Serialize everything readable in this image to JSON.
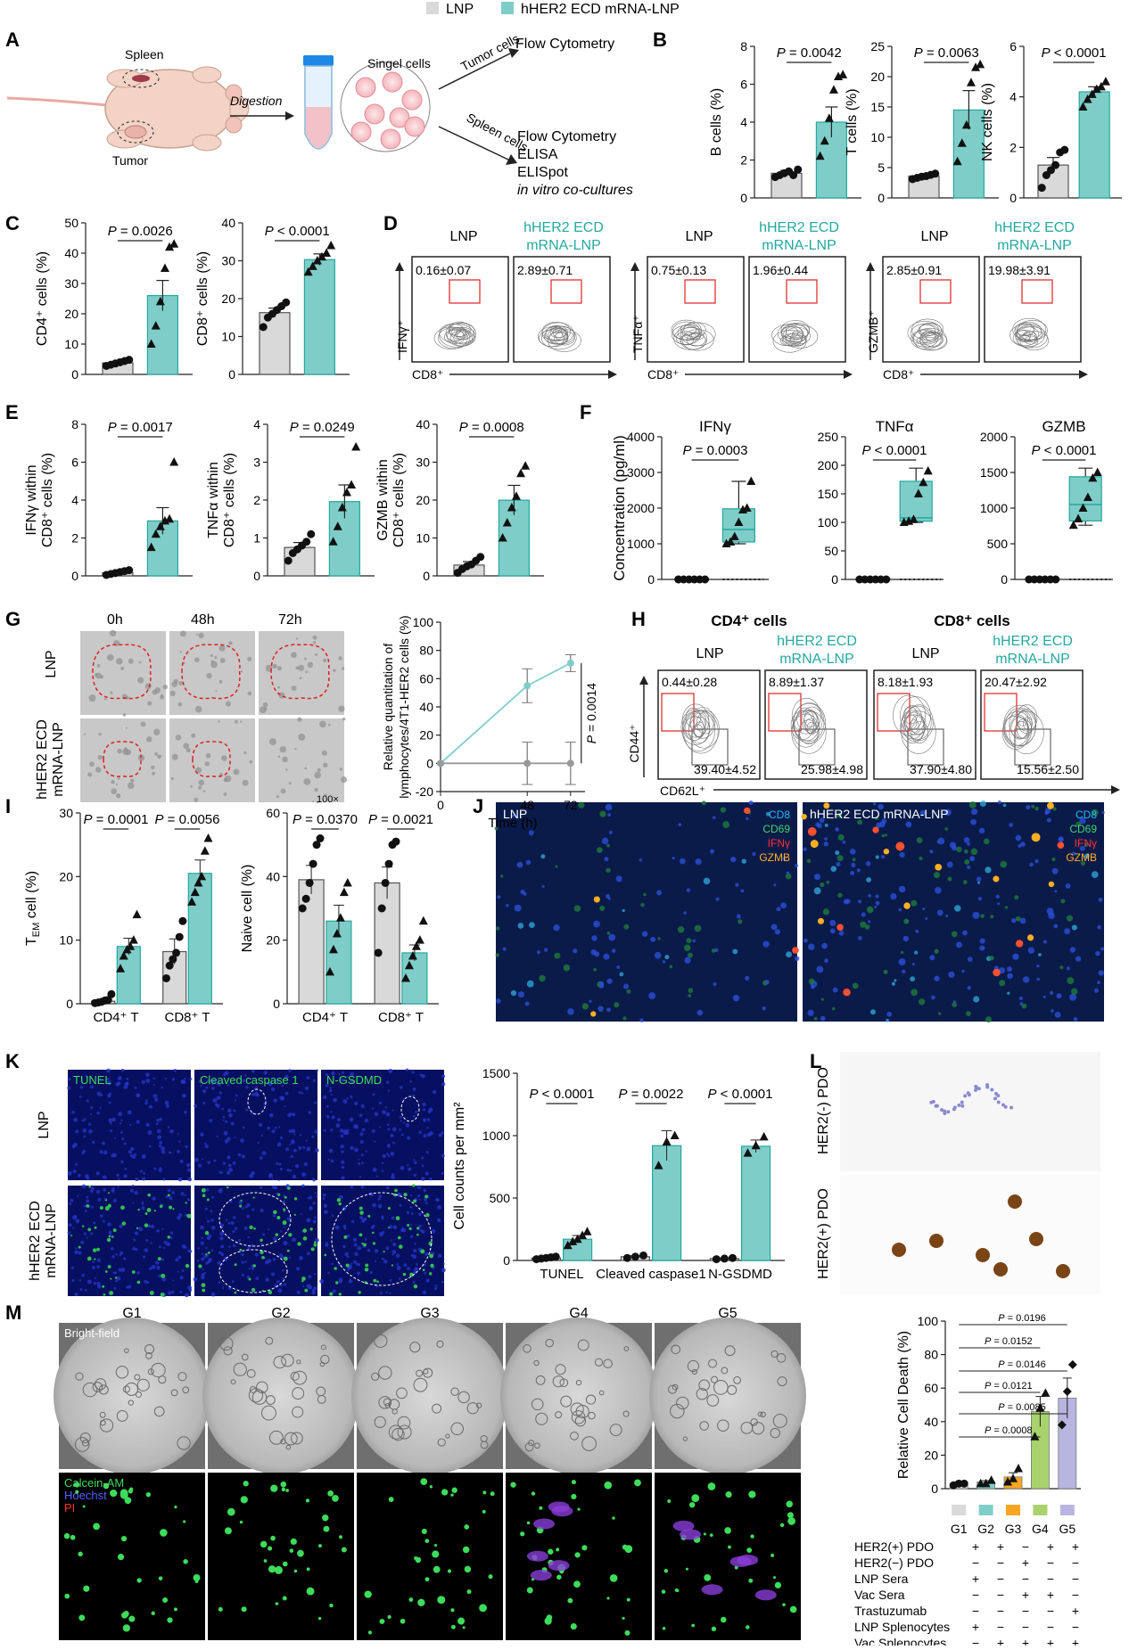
{
  "legend": [
    {
      "label": "LNP",
      "color": "#d9d9d9"
    },
    {
      "label": "hHER2 ECD mRNA-LNP",
      "color": "#7fcdc8"
    }
  ],
  "colors": {
    "lnp": "#d9d9d9",
    "vac": "#7fcdc8",
    "vac_dark": "#24a89e",
    "g3": "#f5a623",
    "g4": "#a8d26b",
    "g5": "#b8b4e0",
    "gate": "#e02020"
  },
  "panel_a": {
    "letter": "A",
    "spleen": "Spleen",
    "tumor": "Tumor",
    "digestion": "Digestion",
    "single_cells": "Singel cells",
    "tumor_cells": "Tumor cells",
    "spleen_cells": "Spleen cells",
    "tumor_assay": "Flow Cytometry",
    "spleen_assays": [
      "Flow Cytometry",
      "ELISA",
      "ELISpot",
      "in vitro co-cultures"
    ]
  },
  "panel_letters": {
    "B": "B",
    "C": "C",
    "D": "D",
    "E": "E",
    "F": "F",
    "G": "G",
    "H": "H",
    "I": "I",
    "J": "J",
    "K": "K",
    "L": "L",
    "M": "M"
  },
  "chart_data": [
    {
      "id": "B1",
      "type": "bar",
      "ylabel": "B cells (%)",
      "ylim": [
        0,
        8
      ],
      "yticks": [
        0,
        2,
        4,
        6,
        8
      ],
      "categories": [
        "LNP",
        "hHER2 ECD mRNA-LNP"
      ],
      "values": [
        1.3,
        4.0
      ],
      "sem": [
        0.15,
        0.8
      ],
      "points": [
        [
          1.1,
          1.2,
          1.3,
          1.4,
          1.2,
          1.5
        ],
        [
          2.2,
          3.0,
          4.2,
          5.7,
          6.4,
          6.5
        ]
      ],
      "pvalue": "P = 0.0042"
    },
    {
      "id": "B2",
      "type": "bar",
      "ylabel": "T cells (%)",
      "ylim": [
        0,
        25
      ],
      "yticks": [
        0,
        5,
        10,
        15,
        20,
        25
      ],
      "categories": [
        "LNP",
        "hHER2 ECD mRNA-LNP"
      ],
      "values": [
        3.6,
        14.5
      ],
      "sem": [
        0.2,
        3.2
      ],
      "points": [
        [
          3.1,
          3.3,
          3.5,
          3.6,
          3.8,
          4.0
        ],
        [
          6.0,
          9.0,
          12.0,
          19.0,
          21.5,
          22.0
        ]
      ],
      "pvalue": "P = 0.0063"
    },
    {
      "id": "B3",
      "type": "bar",
      "ylabel": "NK cells (%)",
      "ylim": [
        0,
        6
      ],
      "yticks": [
        0,
        2,
        4,
        6
      ],
      "categories": [
        "LNP",
        "hHER2 ECD mRNA-LNP"
      ],
      "values": [
        1.3,
        4.2
      ],
      "sem": [
        0.3,
        0.2
      ],
      "points": [
        [
          0.4,
          0.9,
          1.1,
          1.3,
          1.8,
          1.9
        ],
        [
          3.6,
          3.9,
          4.1,
          4.3,
          4.4,
          4.6
        ]
      ],
      "pvalue": "P < 0.0001"
    },
    {
      "id": "C1",
      "type": "bar",
      "ylabel": "CD4⁺ cells (%)",
      "ylim": [
        0,
        50
      ],
      "yticks": [
        0,
        10,
        20,
        30,
        40,
        50
      ],
      "categories": [
        "LNP",
        "hHER2 ECD mRNA-LNP"
      ],
      "values": [
        3.8,
        26.0
      ],
      "sem": [
        0.4,
        5.0
      ],
      "points": [
        [
          2.8,
          3.2,
          3.6,
          4.0,
          4.4,
          4.8
        ],
        [
          10.0,
          16.0,
          24.0,
          35.0,
          42.0,
          43.0
        ]
      ],
      "pvalue": "P = 0.0026"
    },
    {
      "id": "C2",
      "type": "bar",
      "ylabel": "CD8⁺ cells (%)",
      "ylim": [
        0,
        40
      ],
      "yticks": [
        0,
        10,
        20,
        30,
        40
      ],
      "categories": [
        "LNP",
        "hHER2 ECD mRNA-LNP"
      ],
      "values": [
        16.3,
        30.3
      ],
      "sem": [
        1.2,
        1.5
      ],
      "points": [
        [
          12.5,
          15.0,
          16.0,
          17.0,
          18.0,
          19.0
        ],
        [
          27.0,
          28.5,
          30.0,
          31.0,
          32.0,
          34.0
        ]
      ],
      "pvalue": "P < 0.0001"
    },
    {
      "id": "E1",
      "type": "bar",
      "ylabel": "IFNγ within CD8⁺ cells (%)",
      "ylim": [
        0,
        8
      ],
      "yticks": [
        0,
        2,
        4,
        6,
        8
      ],
      "categories": [
        "LNP",
        "hHER2 ECD mRNA-LNP"
      ],
      "values": [
        0.16,
        2.9
      ],
      "sem": [
        0.07,
        0.7
      ],
      "points": [
        [
          0.05,
          0.1,
          0.15,
          0.2,
          0.25,
          0.3
        ],
        [
          1.5,
          2.2,
          2.6,
          2.9,
          3.0,
          6.0
        ]
      ],
      "pvalue": "P = 0.0017"
    },
    {
      "id": "E2",
      "type": "bar",
      "ylabel": "TNFα within CD8⁺ cells (%)",
      "ylim": [
        0,
        4
      ],
      "yticks": [
        0,
        1,
        2,
        3,
        4
      ],
      "categories": [
        "LNP",
        "hHER2 ECD mRNA-LNP"
      ],
      "values": [
        0.75,
        1.96
      ],
      "sem": [
        0.13,
        0.44
      ],
      "points": [
        [
          0.4,
          0.6,
          0.7,
          0.8,
          0.9,
          1.1
        ],
        [
          0.9,
          1.3,
          1.8,
          2.2,
          2.4,
          3.4
        ]
      ],
      "pvalue": "P = 0.0249"
    },
    {
      "id": "E3",
      "type": "bar",
      "ylabel": "GZMB within CD8⁺ cells (%)",
      "ylim": [
        0,
        40
      ],
      "yticks": [
        0,
        10,
        20,
        30,
        40
      ],
      "categories": [
        "LNP",
        "hHER2 ECD mRNA-LNP"
      ],
      "values": [
        2.85,
        19.98
      ],
      "sem": [
        0.91,
        3.91
      ],
      "points": [
        [
          0.8,
          1.8,
          2.5,
          3.0,
          4.0,
          5.0
        ],
        [
          10.0,
          14.0,
          18.0,
          21.0,
          27.0,
          29.0
        ]
      ],
      "pvalue": "P = 0.0008"
    },
    {
      "id": "F1",
      "type": "box",
      "title": "IFNγ",
      "ylabel": "Concentration (pg/ml)",
      "ylim": [
        0,
        4000
      ],
      "yticks": [
        0,
        1000,
        2000,
        3000,
        4000
      ],
      "box": {
        "min": 1000,
        "q1": 1050,
        "median": 1400,
        "q3": 1980,
        "max": 2750
      },
      "lnp_points": [
        0,
        0,
        0,
        0,
        0,
        0
      ],
      "points": [
        1000,
        1050,
        1200,
        1600,
        1950,
        2000,
        2750
      ],
      "pvalue": "P = 0.0003"
    },
    {
      "id": "F2",
      "type": "box",
      "title": "TNFα",
      "ylabel": "",
      "ylim": [
        0,
        250
      ],
      "yticks": [
        0,
        50,
        100,
        150,
        200,
        250
      ],
      "box": {
        "min": 100,
        "q1": 102,
        "median": 108,
        "q3": 172,
        "max": 195
      },
      "lnp_points": [
        0,
        0,
        0,
        0,
        0,
        0
      ],
      "points": [
        100,
        102,
        105,
        150,
        170,
        190
      ],
      "pvalue": "P < 0.0001"
    },
    {
      "id": "F3",
      "type": "box",
      "title": "GZMB",
      "ylabel": "",
      "ylim": [
        0,
        2000
      ],
      "yticks": [
        0,
        500,
        1000,
        1500,
        2000
      ],
      "box": {
        "min": 760,
        "q1": 820,
        "median": 1050,
        "q3": 1440,
        "max": 1560
      },
      "lnp_points": [
        0,
        0,
        0,
        0,
        0,
        0
      ],
      "points": [
        760,
        850,
        1000,
        1150,
        1420,
        1500
      ],
      "pvalue": "P < 0.0001"
    },
    {
      "id": "G",
      "type": "line",
      "ylabel": "Relative quantitation of lymphocytes/4T1-HER2 cells (%)",
      "xlabel": "Time (h)",
      "x": [
        0,
        48,
        72
      ],
      "xticks": [
        0,
        48,
        72
      ],
      "ylim": [
        -20,
        100
      ],
      "yticks": [
        -20,
        0,
        20,
        40,
        60,
        80,
        100
      ],
      "series": [
        {
          "values": [
            0,
            55,
            71
          ],
          "sem": [
            0,
            12,
            6
          ]
        },
        {
          "values": [
            0,
            0,
            0
          ],
          "sem": [
            0,
            15,
            15
          ]
        }
      ],
      "pvalue": "P = 0.0014"
    },
    {
      "id": "I1",
      "type": "grouped_bar",
      "ylabel": "T_EM cell (%)",
      "ylim": [
        0,
        30
      ],
      "yticks": [
        0,
        10,
        20,
        30
      ],
      "categories": [
        "CD4⁺ T",
        "CD8⁺ T"
      ],
      "series": [
        {
          "values": [
            0.4,
            8.2
          ],
          "sem": [
            0.3,
            2.0
          ]
        },
        {
          "values": [
            9.0,
            20.5
          ],
          "sem": [
            1.3,
            2.1
          ]
        }
      ],
      "points": [
        [
          [
            0.1,
            0.2,
            0.3,
            0.5,
            0.6,
            1.5
          ],
          [
            4.0,
            6.0,
            7.0,
            8.0,
            10.5,
            13.0
          ]
        ],
        [
          [
            5.5,
            7.5,
            8.5,
            9.0,
            10.0,
            14.0
          ],
          [
            16.0,
            17.5,
            19.0,
            20.0,
            24.0,
            26.0
          ]
        ]
      ],
      "pvalues": [
        "P = 0.0001",
        "P = 0.0056"
      ]
    },
    {
      "id": "I2",
      "type": "grouped_bar",
      "ylabel": "Naive cell (%)",
      "ylim": [
        0,
        60
      ],
      "yticks": [
        0,
        20,
        40,
        60
      ],
      "categories": [
        "CD4⁺ T",
        "CD8⁺ T"
      ],
      "series": [
        {
          "values": [
            39.0,
            38.0
          ],
          "sem": [
            4.5,
            5.0
          ]
        },
        {
          "values": [
            26.0,
            16.0
          ],
          "sem": [
            5.0,
            2.5
          ]
        }
      ],
      "points": [
        [
          [
            30.0,
            33.0,
            38.0,
            44.0,
            50.0,
            52.0
          ],
          [
            16.0,
            30.0,
            38.0,
            44.0,
            50.0,
            51.0
          ]
        ],
        [
          [
            10.0,
            17.0,
            22.0,
            27.0,
            35.0,
            38.0
          ],
          [
            8.0,
            12.0,
            15.0,
            18.0,
            20.0,
            26.0
          ]
        ]
      ],
      "pvalues": [
        "P = 0.0370",
        "P = 0.0021"
      ]
    },
    {
      "id": "K",
      "type": "grouped_bar",
      "ylabel": "Cell counts per mm²",
      "ylim": [
        0,
        1500
      ],
      "yticks": [
        0,
        500,
        1000,
        1500
      ],
      "categories": [
        "TUNEL",
        "Cleaved caspase1",
        "N-GSDMD"
      ],
      "series": [
        {
          "values": [
            20,
            30,
            15
          ],
          "sem": [
            5,
            8,
            5
          ]
        },
        {
          "values": [
            170,
            920,
            915
          ],
          "sem": [
            30,
            120,
            50
          ]
        }
      ],
      "points": [
        [
          [
            10,
            15,
            20,
            25,
            30
          ],
          [
            20,
            30,
            40
          ],
          [
            10,
            15,
            20
          ]
        ],
        [
          [
            120,
            150,
            170,
            200,
            230
          ],
          [
            760,
            950,
            1000
          ],
          [
            860,
            920,
            990
          ]
        ]
      ],
      "pvalues": [
        "P < 0.0001",
        "P = 0.0022",
        "P < 0.0001"
      ]
    },
    {
      "id": "M",
      "type": "bar",
      "ylabel": "Relative Cell Death (%)",
      "ylim": [
        0,
        100
      ],
      "yticks": [
        0,
        20,
        40,
        60,
        80,
        100
      ],
      "categories": [
        "G1",
        "G2",
        "G3",
        "G4",
        "G5"
      ],
      "values": [
        3.0,
        4.0,
        7.0,
        46.0,
        54.0
      ],
      "sem": [
        0.5,
        0.8,
        2.5,
        9.0,
        12.0
      ],
      "points": [
        [
          2,
          3,
          3
        ],
        [
          3,
          3,
          5
        ],
        [
          4,
          6,
          12
        ],
        [
          31,
          48,
          57
        ],
        [
          38,
          58,
          74
        ]
      ],
      "pvalues": [
        "P = 0.0196",
        "P = 0.0152",
        "P = 0.0146",
        "P = 0.0121",
        "P = 0.0085",
        "P = 0.0008"
      ]
    }
  ],
  "panel_d": {
    "groups": [
      {
        "marker": "IFNγ⁺",
        "lnp_value": "0.16±0.07",
        "vac_value": "2.89±0.71"
      },
      {
        "marker": "TNFα⁺",
        "lnp_value": "0.75±0.13",
        "vac_value": "1.96±0.44"
      },
      {
        "marker": "GZMB⁺",
        "lnp_value": "2.85±0.91",
        "vac_value": "19.98±3.91"
      }
    ],
    "xaxis": "CD8⁺",
    "lnp": "LNP",
    "vac_l1": "hHER2 ECD",
    "vac_l2": "mRNA-LNP"
  },
  "panel_g_images": {
    "times": [
      "0h",
      "48h",
      "72h"
    ],
    "row1": "LNP",
    "row2_l1": "hHER2 ECD",
    "row2_l2": "mRNA-LNP",
    "mag": "100×"
  },
  "panel_h": {
    "cd4_title": "CD4⁺ cells",
    "cd8_title": "CD8⁺ cells",
    "lnp": "LNP",
    "vac_l1": "hHER2 ECD",
    "vac_l2": "mRNA-LNP",
    "top": [
      "0.44±0.28",
      "8.89±1.37",
      "8.18±1.93",
      "20.47±2.92"
    ],
    "bottom": [
      "39.40±4.52",
      "25.98±4.98",
      "37.90±4.80",
      "15.56±2.50"
    ],
    "yaxis": "CD44⁺",
    "xaxis": "CD62L⁺"
  },
  "panel_j": {
    "left": "LNP",
    "right": "hHER2 ECD mRNA-LNP",
    "channels": [
      {
        "label": "CD8",
        "color": "#29b6f6"
      },
      {
        "label": "CD69",
        "color": "#43d36a"
      },
      {
        "label": "IFNγ",
        "color": "#ff3030"
      },
      {
        "label": "GZMB",
        "color": "#ffb020"
      }
    ]
  },
  "panel_k_images": {
    "stains": [
      "TUNEL",
      "Cleaved caspase 1",
      "N-GSDMD"
    ],
    "row1": "LNP",
    "row2_l1": "hHER2 ECD",
    "row2_l2": "mRNA-LNP"
  },
  "panel_l": {
    "top": "HER2(-) PDO",
    "bottom": "HER2(+) PDO"
  },
  "panel_m_images": {
    "groups": [
      "G1",
      "G2",
      "G3",
      "G4",
      "G5"
    ],
    "bright_field": "Bright-field",
    "stains": [
      {
        "label": "Calcein-AM",
        "color": "#3ddc5a"
      },
      {
        "label": "Hoechst",
        "color": "#5560ff"
      },
      {
        "label": "PI",
        "color": "#ff3030"
      }
    ]
  },
  "panel_m_table": {
    "groups": [
      "G1",
      "G2",
      "G3",
      "G4",
      "G5"
    ],
    "rows": [
      {
        "label": "HER2(+) PDO",
        "values": [
          "+",
          "+",
          "−",
          "+",
          "+"
        ]
      },
      {
        "label": "HER2(−) PDO",
        "values": [
          "−",
          "−",
          "+",
          "−",
          "−"
        ]
      },
      {
        "label": "LNP Sera",
        "values": [
          "+",
          "−",
          "−",
          "−",
          "−"
        ]
      },
      {
        "label": "Vac Sera",
        "values": [
          "−",
          "−",
          "+",
          "+",
          "−"
        ]
      },
      {
        "label": "Trastuzumab",
        "values": [
          "−",
          "−",
          "−",
          "−",
          "+"
        ]
      },
      {
        "label": "LNP Splenocytes",
        "values": [
          "+",
          "−",
          "−",
          "−",
          "−"
        ]
      },
      {
        "label": "Vac Splenocytes",
        "values": [
          "−",
          "+",
          "+",
          "+",
          "+"
        ]
      }
    ]
  }
}
